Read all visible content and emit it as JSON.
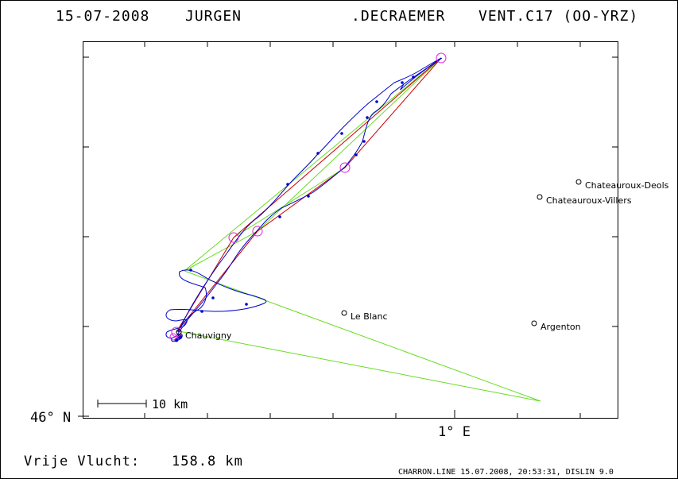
{
  "header": {
    "date": "15-07-2008",
    "first_name": "JURGEN",
    "last_name": ".DECRAEMER",
    "aircraft": "VENT.C17 (OO-YRZ)"
  },
  "axes": {
    "lat_label": "46° N",
    "lon_label": "1° E"
  },
  "scale_bar": {
    "label": "10 km"
  },
  "places": [
    {
      "name": "Chateauroux-Deols",
      "symbol": "circle-marker"
    },
    {
      "name": "Chateauroux-Villers",
      "symbol": "circle-marker"
    },
    {
      "name": "Le Blanc",
      "symbol": "circle-marker"
    },
    {
      "name": "Argenton",
      "symbol": "circle-marker"
    },
    {
      "name": "Chauvigny",
      "symbol": "circle-marker"
    }
  ],
  "track": {
    "colors": {
      "track": "#0000cc",
      "route": "#cc0000",
      "triangle": "#66dd22",
      "turnpoint": "#dd22dd"
    }
  },
  "footer": {
    "distance_label": "Vrije Vlucht:",
    "distance_value": "158.8 km",
    "credits": "CHARRON.LINE 15.07.2008, 20:53:31, DISLIN 9.0"
  }
}
